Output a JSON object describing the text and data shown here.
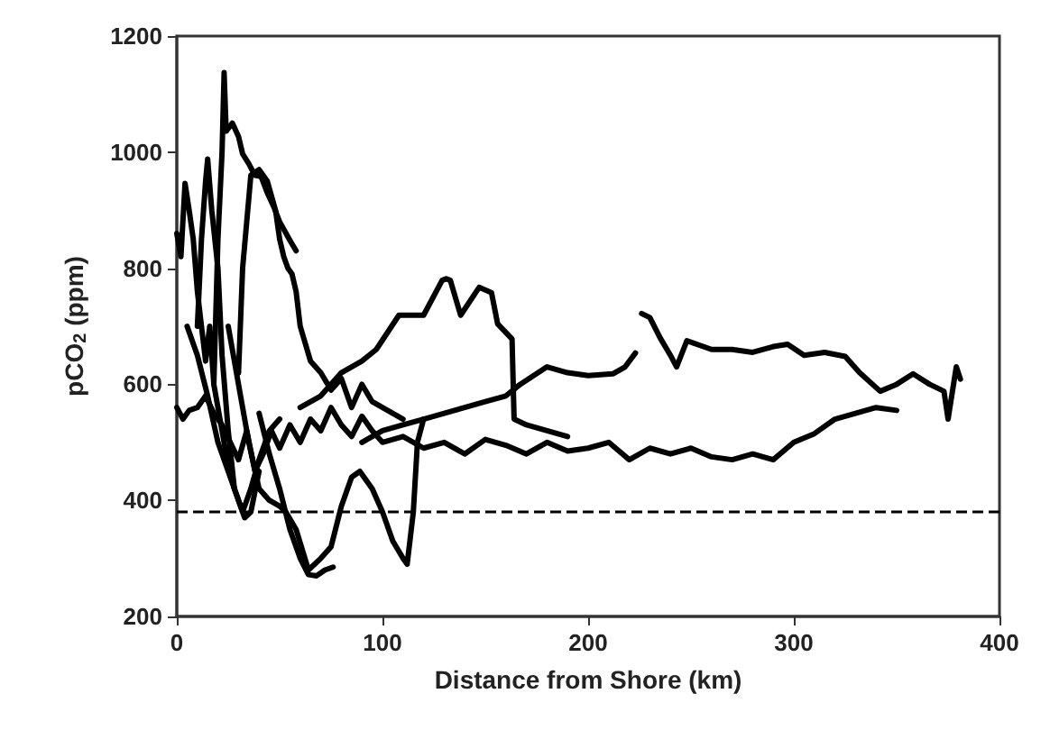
{
  "chart_data": {
    "type": "line",
    "xlabel": "Distance from Shore (km)",
    "ylabel": "pCO$_{2}$ (ppm)",
    "xlim": [
      0,
      400
    ],
    "xticks": [
      0,
      100,
      200,
      300,
      400
    ],
    "ylim": [
      200,
      1200
    ],
    "yticks": [
      200,
      400,
      600,
      800,
      1000,
      1200
    ],
    "grid": false,
    "marker": "none",
    "line_style": "solid",
    "ref_lines": [
      {
        "axis": "y",
        "value": 380,
        "line_style": "dashed",
        "color": "#000000"
      }
    ],
    "series": [
      {
        "color": "#000000",
        "x": [
          0,
          3,
          6,
          10,
          14,
          18,
          22,
          26,
          30,
          34,
          38,
          42,
          46,
          50,
          55,
          60,
          65,
          70,
          75,
          80,
          85,
          90,
          95,
          100,
          110,
          120,
          130,
          140,
          150,
          160,
          170,
          180,
          190,
          200,
          210,
          220,
          230,
          240,
          250,
          260,
          270,
          280,
          290,
          300,
          310,
          320,
          330,
          340,
          350
        ],
        "values": [
          560,
          540,
          555,
          560,
          580,
          550,
          530,
          500,
          470,
          520,
          450,
          480,
          520,
          490,
          530,
          500,
          540,
          520,
          560,
          530,
          510,
          545,
          520,
          500,
          510,
          490,
          500,
          480,
          505,
          495,
          480,
          500,
          485,
          490,
          500,
          470,
          490,
          480,
          490,
          475,
          470,
          480,
          470,
          500,
          515,
          540,
          550,
          560,
          555
        ]
      },
      {
        "color": "#000000",
        "x": [
          18,
          20,
          22,
          23,
          24,
          27,
          30,
          32,
          35,
          38,
          41,
          44,
          47,
          50,
          55,
          58
        ],
        "values": [
          600,
          850,
          1000,
          1137,
          1036,
          1050,
          1027,
          997,
          980,
          960,
          958,
          930,
          907,
          880,
          848,
          830
        ]
      },
      {
        "color": "#000000",
        "x": [
          0,
          2,
          4,
          6,
          8,
          10,
          12,
          14,
          16,
          18,
          20,
          24,
          28,
          32,
          36,
          40,
          45,
          50
        ],
        "values": [
          860,
          820,
          946,
          900,
          850,
          760,
          700,
          640,
          700,
          600,
          560,
          480,
          420,
          380,
          420,
          470,
          520,
          540
        ]
      },
      {
        "color": "#000000",
        "x": [
          30,
          32,
          36,
          40,
          44,
          48,
          50,
          52,
          54,
          56,
          58,
          60,
          65,
          70,
          75,
          80,
          85,
          90,
          95,
          100,
          110
        ],
        "values": [
          620,
          800,
          960,
          970,
          950,
          900,
          850,
          820,
          800,
          790,
          760,
          700,
          640,
          620,
          590,
          610,
          560,
          600,
          570,
          560,
          540
        ]
      },
      {
        "color": "#000000",
        "x": [
          25,
          30,
          35,
          40,
          45,
          50,
          53,
          58,
          64,
          70,
          75,
          80,
          85,
          89,
          95,
          100,
          105,
          110,
          112,
          115,
          117,
          120
        ],
        "values": [
          700,
          600,
          500,
          420,
          400,
          390,
          380,
          350,
          280,
          300,
          320,
          390,
          440,
          450,
          420,
          380,
          330,
          300,
          290,
          380,
          500,
          540
        ]
      },
      {
        "color": "#000000",
        "x": [
          40,
          45,
          50,
          55,
          60,
          64,
          68,
          72,
          76
        ],
        "values": [
          550,
          480,
          420,
          350,
          300,
          272,
          270,
          280,
          285
        ]
      },
      {
        "color": "#000000",
        "x": [
          60,
          70,
          80,
          90,
          97,
          108,
          120,
          129,
          131,
          133,
          138,
          147,
          153,
          156,
          163,
          164,
          170,
          180,
          190
        ],
        "values": [
          560,
          580,
          620,
          640,
          660,
          719,
          719,
          779,
          782,
          779,
          719,
          767,
          758,
          704,
          678,
          540,
          530,
          520,
          510
        ]
      },
      {
        "color": "#000000",
        "x": [
          90,
          100,
          110,
          120,
          130,
          140,
          150,
          160,
          167,
          180,
          190,
          200,
          212,
          218,
          223
        ],
        "values": [
          500,
          520,
          530,
          540,
          550,
          560,
          570,
          580,
          600,
          630,
          620,
          615,
          618,
          630,
          654
        ]
      },
      {
        "color": "#000000",
        "x": [
          226,
          230,
          235,
          240,
          243,
          248,
          260,
          270,
          280,
          290,
          297,
          305,
          315,
          325,
          332,
          342,
          350,
          358,
          366,
          373,
          375,
          379,
          381
        ],
        "values": [
          722,
          715,
          680,
          650,
          630,
          675,
          660,
          660,
          655,
          665,
          669,
          650,
          655,
          648,
          620,
          588,
          600,
          618,
          600,
          588,
          540,
          630,
          609
        ]
      },
      {
        "color": "#000000",
        "x": [
          5,
          10,
          15,
          20,
          25,
          30,
          33,
          36,
          40
        ],
        "values": [
          700,
          650,
          580,
          500,
          450,
          400,
          370,
          380,
          450
        ]
      },
      {
        "color": "#000000",
        "x": [
          10,
          12,
          14,
          15,
          17,
          20,
          22,
          25,
          28
        ],
        "values": [
          700,
          850,
          950,
          988,
          900,
          800,
          650,
          520,
          420
        ]
      }
    ]
  }
}
